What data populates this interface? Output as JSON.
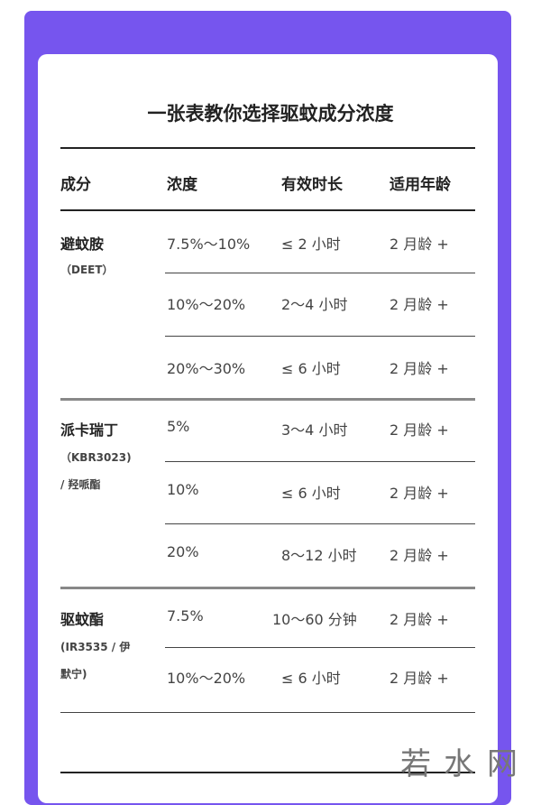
{
  "title": "一张表教你选择驱蚊成分浓度",
  "headers": [
    "成分",
    "浓度",
    "有效时长",
    "适用年龄"
  ],
  "groups": [
    {
      "name": "避蚊胺",
      "sub": [
        "（DEET）"
      ],
      "rows": [
        {
          "concentration": "7.5%～10%",
          "duration": "≤ 2 小时",
          "age": "2 月龄 +"
        },
        {
          "concentration": "10%～20%",
          "duration": "2～4 小时",
          "age": "2 月龄 +"
        },
        {
          "concentration": "20%～30%",
          "duration": "≤ 6 小时",
          "age": "2 月龄 +"
        }
      ]
    },
    {
      "name": "派卡瑞丁",
      "sub": [
        "（KBR3023)",
        "/ 羟哌酯"
      ],
      "rows": [
        {
          "concentration": "5%",
          "duration": "3～4 小时",
          "age": "2 月龄 +"
        },
        {
          "concentration": "10%",
          "duration": "≤ 6 小时",
          "age": "2 月龄 +"
        },
        {
          "concentration": "20%",
          "duration": "8～12 小时",
          "age": "2 月龄 +"
        }
      ]
    },
    {
      "name": "驱蚊酯",
      "sub": [
        "(IR3535 / 伊",
        "默宁)"
      ],
      "rows": [
        {
          "concentration": "7.5%",
          "duration": "10～60 分钟",
          "age": "2 月龄 +"
        },
        {
          "concentration": "10%～20%",
          "duration": "≤ 6 小时",
          "age": "2 月龄 +"
        }
      ]
    }
  ],
  "watermark": "若水网",
  "colors": {
    "frame": "#7655ee"
  }
}
